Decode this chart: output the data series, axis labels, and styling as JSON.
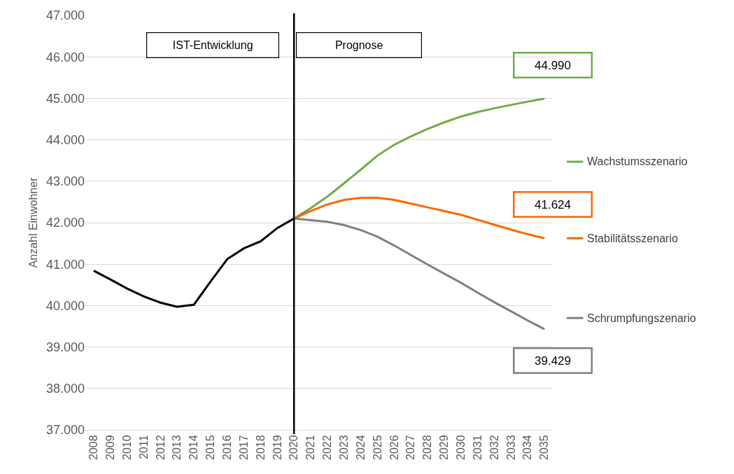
{
  "chart_data": {
    "type": "line",
    "ylabel": "Anzahl Einwohner",
    "categories": [
      "2008",
      "2009",
      "2010",
      "2011",
      "2012",
      "2013",
      "2014",
      "2015",
      "2016",
      "2017",
      "2018",
      "2019",
      "2020",
      "2021",
      "2022",
      "2023",
      "2024",
      "2025",
      "2026",
      "2027",
      "2028",
      "2029",
      "2030",
      "2031",
      "2032",
      "2033",
      "2034",
      "2035"
    ],
    "series": [
      {
        "color": "#000000",
        "values": [
          40840,
          40630,
          40410,
          40220,
          40070,
          39970,
          40020,
          40580,
          41120,
          41380,
          41550,
          41870,
          42100,
          null,
          null,
          null,
          null,
          null,
          null,
          null,
          null,
          null,
          null,
          null,
          null,
          null,
          null,
          null
        ]
      },
      {
        "name": "Wachstumsszenario",
        "color": "#70ad47",
        "values": [
          null,
          null,
          null,
          null,
          null,
          null,
          null,
          null,
          null,
          null,
          null,
          null,
          42100,
          42350,
          42630,
          42950,
          43280,
          43620,
          43880,
          44080,
          44260,
          44420,
          44560,
          44670,
          44760,
          44840,
          44920,
          44990
        ]
      },
      {
        "name": "Stabilitätsszenario",
        "color": "#ff6600",
        "values": [
          null,
          null,
          null,
          null,
          null,
          null,
          null,
          null,
          null,
          null,
          null,
          null,
          42100,
          42280,
          42440,
          42550,
          42600,
          42600,
          42550,
          42460,
          42370,
          42280,
          42190,
          42070,
          41950,
          41830,
          41720,
          41624
        ]
      },
      {
        "name": "Schrumpfungszenario",
        "color": "#808080",
        "values": [
          null,
          null,
          null,
          null,
          null,
          null,
          null,
          null,
          null,
          null,
          null,
          null,
          42100,
          42060,
          42020,
          41940,
          41820,
          41660,
          41450,
          41220,
          40990,
          40770,
          40550,
          40310,
          40080,
          39860,
          39640,
          39429
        ]
      }
    ],
    "ylim": [
      37000,
      47000
    ],
    "yticks": [
      {
        "value": 37000,
        "label": "37.000"
      },
      {
        "value": 38000,
        "label": "38.000"
      },
      {
        "value": 39000,
        "label": "39.000"
      },
      {
        "value": 40000,
        "label": "40.000"
      },
      {
        "value": 41000,
        "label": "41.000"
      },
      {
        "value": 42000,
        "label": "42.000"
      },
      {
        "value": 43000,
        "label": "43.000"
      },
      {
        "value": 44000,
        "label": "44.000"
      },
      {
        "value": 45000,
        "label": "45.000"
      },
      {
        "value": 46000,
        "label": "46.000"
      },
      {
        "value": 47000,
        "label": "47.000"
      }
    ],
    "grid": "y",
    "legend": "right",
    "ref_lines": [
      {
        "axis": "x",
        "value": "2020",
        "color": "#000000"
      }
    ],
    "annotations": [
      "IST-Entwicklung",
      "Prognose",
      {
        "text": "44.990",
        "x": "2035",
        "y": 44990
      },
      {
        "text": "41.624",
        "x": "2035",
        "y": 41624
      },
      {
        "text": "39.429",
        "x": "2035",
        "y": 39429
      }
    ]
  }
}
